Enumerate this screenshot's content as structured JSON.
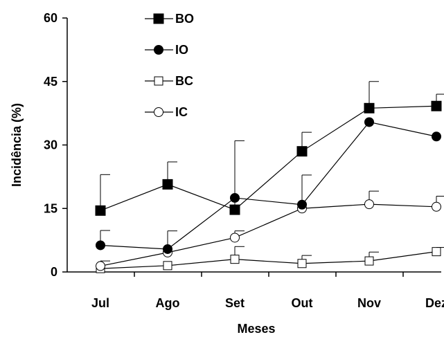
{
  "chart_data": {
    "type": "line",
    "xlabel": "Meses",
    "ylabel": "Incidência (%)",
    "ylim": [
      0,
      60
    ],
    "yticks": [
      "0",
      "15",
      "30",
      "45",
      "60"
    ],
    "categories": [
      "Jul",
      "Ago",
      "Set",
      "Out",
      "Nov",
      "Dez"
    ],
    "grid": false,
    "legend_position": "top-left",
    "series": [
      {
        "name": "BO",
        "marker": "filled-square",
        "values": [
          14.5,
          20.7,
          14.7,
          28.5,
          38.7,
          39.2
        ],
        "error": [
          8.5,
          5.3,
          16.3,
          4.5,
          6.3,
          2.8
        ]
      },
      {
        "name": "IO",
        "marker": "filled-circle",
        "values": [
          6.3,
          5.4,
          17.5,
          15.9,
          35.4,
          32.0
        ],
        "error": [
          3.5,
          4.3,
          0,
          7.0,
          0,
          0
        ]
      },
      {
        "name": "BC",
        "marker": "open-square",
        "values": [
          0.8,
          1.5,
          3.0,
          2.0,
          2.6,
          4.8
        ],
        "error": [
          0,
          0,
          3.0,
          1.9,
          2.1,
          1.0
        ]
      },
      {
        "name": "IC",
        "marker": "open-circle",
        "values": [
          1.4,
          4.6,
          8.1,
          15.0,
          16.0,
          15.4
        ],
        "error": [
          1.2,
          0,
          1.6,
          0,
          3.1,
          2.5
        ]
      }
    ]
  }
}
